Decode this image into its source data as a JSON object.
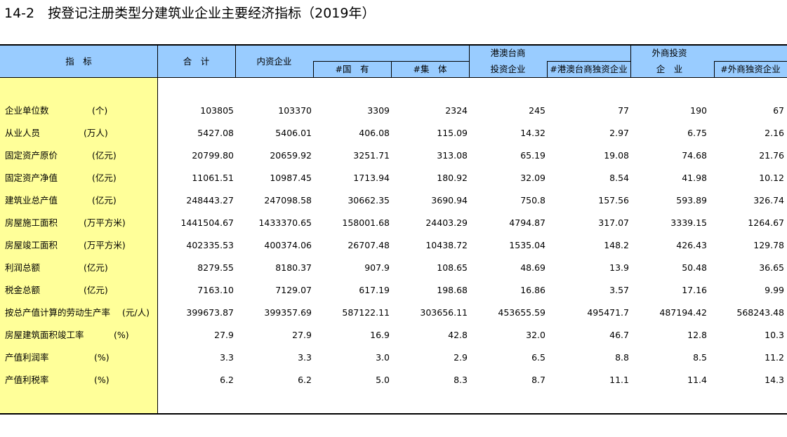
{
  "title": "14-2　按登记注册类型分建筑业企业主要经济指标（2019年）",
  "headers": {
    "indicator": "指　标",
    "total": "合　计",
    "domestic": "内资企业",
    "state_owned": "#国　有",
    "collective": "#集　体",
    "hmt_line1": "港澳台商",
    "hmt_line2": "投资企业",
    "hmt_sole": "#港澳台商独资企业",
    "foreign_line1": "外商投资",
    "foreign_line2": "企　业",
    "foreign_sole": "#外商独资企业"
  },
  "rows": [
    {
      "name": "企业单位数",
      "unit": "(个)",
      "values": [
        "103805",
        "103370",
        "3309",
        "2324",
        "245",
        "77",
        "190",
        "67"
      ]
    },
    {
      "name": "从业人员",
      "unit": "(万人)",
      "values": [
        "5427.08",
        "5406.01",
        "406.08",
        "115.09",
        "14.32",
        "2.97",
        "6.75",
        "2.16"
      ]
    },
    {
      "name": "固定资产原价",
      "unit": "(亿元)",
      "values": [
        "20799.80",
        "20659.92",
        "3251.71",
        "313.08",
        "65.19",
        "19.08",
        "74.68",
        "21.76"
      ]
    },
    {
      "name": "固定资产净值",
      "unit": "(亿元)",
      "values": [
        "11061.51",
        "10987.45",
        "1713.94",
        "180.92",
        "32.09",
        "8.54",
        "41.98",
        "10.12"
      ]
    },
    {
      "name": "建筑业总产值",
      "unit": "(亿元)",
      "values": [
        "248443.27",
        "247098.58",
        "30662.35",
        "3690.94",
        "750.8",
        "157.56",
        "593.89",
        "326.74"
      ]
    },
    {
      "name": "房屋施工面积",
      "unit": "(万平方米)",
      "values": [
        "1441504.67",
        "1433370.65",
        "158001.68",
        "24403.29",
        "4794.87",
        "317.07",
        "3339.15",
        "1264.67"
      ]
    },
    {
      "name": "房屋竣工面积",
      "unit": "(万平方米)",
      "values": [
        "402335.53",
        "400374.06",
        "26707.48",
        "10438.72",
        "1535.04",
        "148.2",
        "426.43",
        "129.78"
      ]
    },
    {
      "name": "利润总额",
      "unit": "(亿元)",
      "values": [
        "8279.55",
        "8180.37",
        "907.9",
        "108.65",
        "48.69",
        "13.9",
        "50.48",
        "36.65"
      ]
    },
    {
      "name": "税金总额",
      "unit": "(亿元)",
      "values": [
        "7163.10",
        "7129.07",
        "617.19",
        "198.68",
        "16.86",
        "3.57",
        "17.16",
        "9.99"
      ]
    },
    {
      "name": "按总产值计算的劳动生产率",
      "unit": "(元/人)",
      "values": [
        "399673.87",
        "399357.69",
        "587122.11",
        "303656.11",
        "453655.59",
        "495471.7",
        "487194.42",
        "568243.48"
      ]
    },
    {
      "name": "房屋建筑面积竣工率",
      "unit": "(%)",
      "values": [
        "27.9",
        "27.9",
        "16.9",
        "42.8",
        "32.0",
        "46.7",
        "12.8",
        "10.3"
      ]
    },
    {
      "name": "产值利润率",
      "unit": "(%)",
      "values": [
        "3.3",
        "3.3",
        "3.0",
        "2.9",
        "6.5",
        "8.8",
        "8.5",
        "11.2"
      ]
    },
    {
      "name": "产值利税率",
      "unit": "(%)",
      "values": [
        "6.2",
        "6.2",
        "5.0",
        "8.3",
        "8.7",
        "11.1",
        "11.4",
        "14.3"
      ]
    }
  ]
}
